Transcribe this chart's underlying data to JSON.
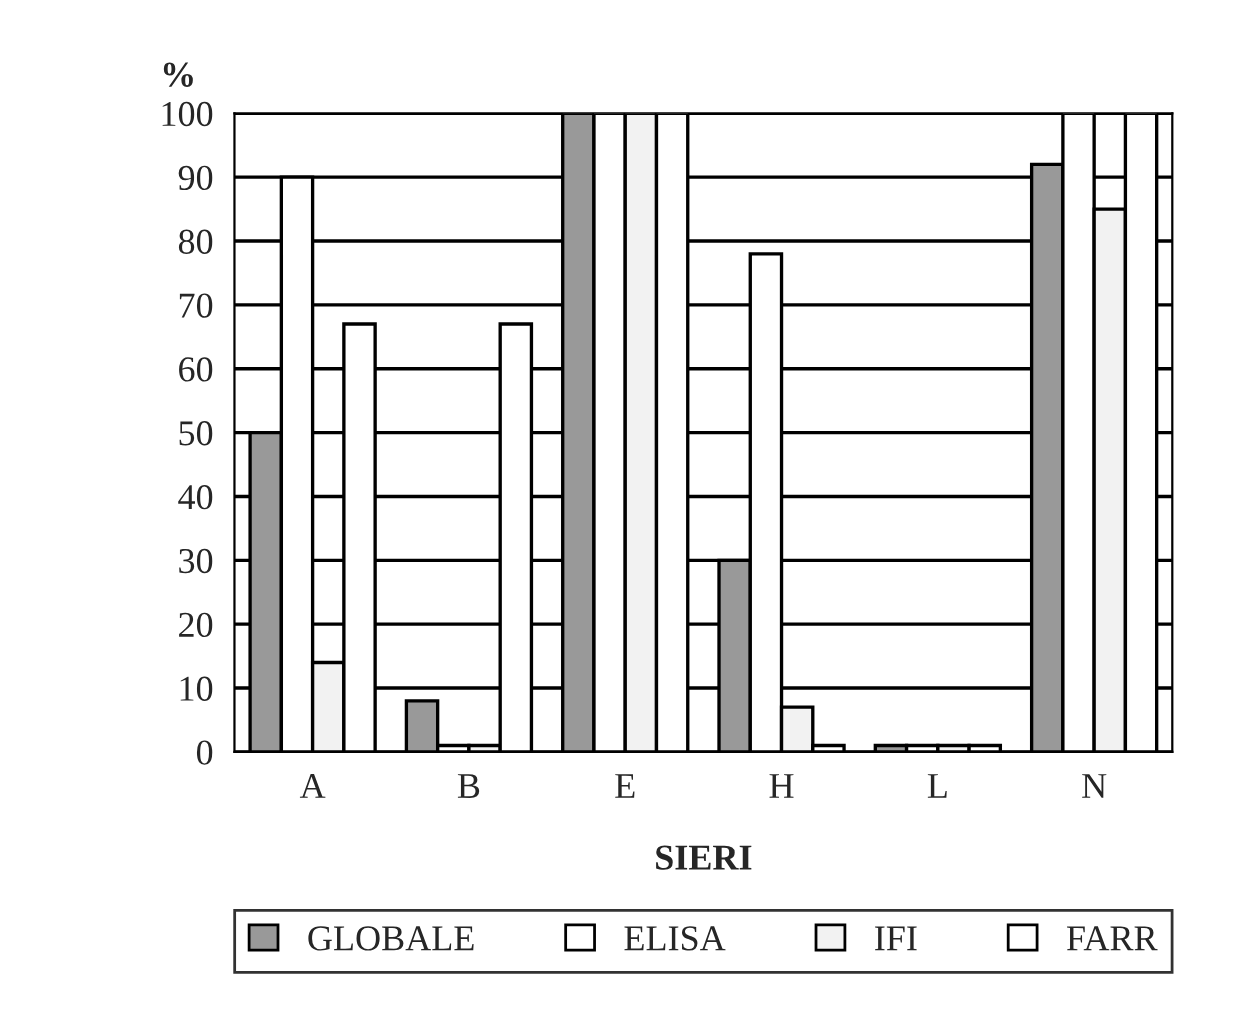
{
  "chart_data": {
    "type": "bar",
    "xlabel": "SIERI",
    "ylabel": "%",
    "categories": [
      "A",
      "B",
      "E",
      "H",
      "L",
      "N"
    ],
    "series": [
      {
        "name": "GLOBALE",
        "color": "#999999",
        "values": [
          50,
          8,
          100,
          30,
          1,
          92
        ]
      },
      {
        "name": "ELISA",
        "color": "#ffffff",
        "values": [
          90,
          1,
          100,
          78,
          1,
          100
        ]
      },
      {
        "name": "IFI",
        "color": "#f2f2f2",
        "values": [
          14,
          1,
          100,
          7,
          1,
          85
        ]
      },
      {
        "name": "FARR",
        "color": "#ffffff",
        "values": [
          67,
          67,
          100,
          1,
          1,
          100
        ]
      }
    ],
    "ylim": [
      0,
      100
    ],
    "yticks": [
      0,
      10,
      20,
      30,
      40,
      50,
      60,
      70,
      80,
      90,
      100
    ],
    "grid": "y",
    "legend": "bottom"
  }
}
